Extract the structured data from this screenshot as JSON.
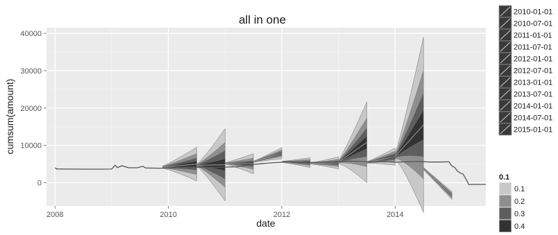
{
  "chart_data": {
    "type": "area",
    "title": "all in one",
    "xlabel": "date",
    "ylabel": "cumsum(amount)",
    "xlim": [
      2007.85,
      2015.6
    ],
    "ylim": [
      -6200,
      41500
    ],
    "xticks": [
      2008,
      2010,
      2012,
      2014
    ],
    "xtick_labels": [
      "2008",
      "2010",
      "2012",
      "2014"
    ],
    "yticks": [
      0,
      10000,
      20000,
      30000,
      40000
    ],
    "ytick_labels": [
      "0",
      "10000",
      "20000",
      "30000",
      "40000"
    ],
    "grid": true,
    "legend_position": "right",
    "date_legend": [
      "2010-01-01",
      "2010-07-01",
      "2011-01-01",
      "2011-07-01",
      "2012-01-01",
      "2012-07-01",
      "2013-01-01",
      "2013-07-01",
      "2014-01-01",
      "2014-07-01",
      "2015-01-01"
    ],
    "band_legend": {
      "title": "0.1",
      "items": [
        {
          "label": "0.1",
          "color": "#c8c8c8"
        },
        {
          "label": "0.2",
          "color": "#8f8f8f"
        },
        {
          "label": "0.3",
          "color": "#5e5e5e"
        },
        {
          "label": "0.4",
          "color": "#333333"
        }
      ]
    },
    "line_color": "#555555",
    "history": [
      [
        2008.0,
        4000
      ],
      [
        2008.03,
        3700
      ],
      [
        2008.2,
        3650
      ],
      [
        2008.5,
        3640
      ],
      [
        2008.8,
        3640
      ],
      [
        2009.0,
        3660
      ],
      [
        2009.06,
        4700
      ],
      [
        2009.1,
        4050
      ],
      [
        2009.18,
        4550
      ],
      [
        2009.3,
        4000
      ],
      [
        2009.45,
        4000
      ],
      [
        2009.55,
        4400
      ],
      [
        2009.6,
        3950
      ],
      [
        2009.8,
        3900
      ],
      [
        2010.0,
        3900
      ],
      [
        2010.2,
        3950
      ],
      [
        2010.4,
        4100
      ],
      [
        2010.6,
        4150
      ],
      [
        2010.8,
        4100
      ],
      [
        2011.0,
        4200
      ],
      [
        2011.2,
        4250
      ],
      [
        2011.5,
        4900
      ],
      [
        2011.8,
        5300
      ],
      [
        2012.0,
        5500
      ],
      [
        2012.1,
        5700
      ],
      [
        2012.3,
        5400
      ],
      [
        2012.6,
        5450
      ],
      [
        2012.8,
        5550
      ],
      [
        2013.0,
        5600
      ],
      [
        2013.2,
        5800
      ],
      [
        2013.4,
        5700
      ],
      [
        2013.6,
        5600
      ],
      [
        2013.8,
        5700
      ],
      [
        2014.0,
        5500
      ],
      [
        2014.2,
        5600
      ],
      [
        2014.4,
        5700
      ],
      [
        2014.6,
        5550
      ],
      [
        2014.8,
        5550
      ],
      [
        2014.95,
        5600
      ],
      [
        2015.0,
        4500
      ],
      [
        2015.05,
        4100
      ],
      [
        2015.1,
        3100
      ],
      [
        2015.15,
        2600
      ],
      [
        2015.2,
        2300
      ],
      [
        2015.25,
        1000
      ],
      [
        2015.3,
        -500
      ],
      [
        2015.35,
        -450
      ],
      [
        2015.6,
        -450
      ]
    ],
    "forecast_bands": [
      {
        "start": 2009.9,
        "end": 2010.5,
        "center": [
          4200,
          5000
        ],
        "spread": [
          [
            300,
            4500
          ],
          [
            200,
            2800
          ],
          [
            120,
            1600
          ],
          [
            60,
            800
          ]
        ]
      },
      {
        "start": 2010.5,
        "end": 2011.0,
        "center": [
          4700,
          4800
        ],
        "spread": [
          [
            300,
            9700
          ],
          [
            200,
            6000
          ],
          [
            120,
            3800
          ],
          [
            60,
            1600
          ]
        ]
      },
      {
        "start": 2011.0,
        "end": 2011.5,
        "center": [
          5200,
          5100
        ],
        "spread": [
          [
            200,
            2700
          ],
          [
            120,
            1500
          ],
          [
            70,
            800
          ],
          [
            40,
            400
          ]
        ]
      },
      {
        "start": 2011.5,
        "end": 2012.0,
        "center": [
          5600,
          7900
        ],
        "spread": [
          [
            150,
            1500
          ],
          [
            100,
            900
          ],
          [
            60,
            500
          ],
          [
            30,
            250
          ]
        ]
      },
      {
        "start": 2012.0,
        "end": 2012.5,
        "center": [
          5600,
          5400
        ],
        "spread": [
          [
            150,
            1300
          ],
          [
            100,
            800
          ],
          [
            60,
            450
          ],
          [
            30,
            200
          ]
        ]
      },
      {
        "start": 2012.5,
        "end": 2013.0,
        "center": [
          5200,
          5300
        ],
        "spread": [
          [
            150,
            1600
          ],
          [
            100,
            950
          ],
          [
            60,
            550
          ],
          [
            30,
            250
          ]
        ]
      },
      {
        "start": 2013.0,
        "end": 2013.5,
        "center": [
          5500,
          10800
        ],
        "spread": [
          [
            400,
            10800
          ],
          [
            250,
            6500
          ],
          [
            150,
            3800
          ],
          [
            80,
            1700
          ]
        ]
      },
      {
        "start": 2013.5,
        "end": 2014.0,
        "center": [
          5400,
          7000
        ],
        "spread": [
          [
            200,
            2300
          ],
          [
            120,
            1400
          ],
          [
            70,
            800
          ],
          [
            40,
            350
          ]
        ]
      },
      {
        "start": 2014.0,
        "end": 2014.5,
        "center": [
          7000,
          15500
        ],
        "spread": [
          [
            800,
            23500
          ],
          [
            500,
            14500
          ],
          [
            300,
            8500
          ],
          [
            150,
            4000
          ]
        ]
      },
      {
        "start": 2014.5,
        "end": 2015.0,
        "center": [
          3800,
          -3400
        ],
        "spread": [
          [
            300,
            1100
          ],
          [
            200,
            700
          ],
          [
            120,
            400
          ],
          [
            60,
            200
          ]
        ]
      }
    ]
  }
}
